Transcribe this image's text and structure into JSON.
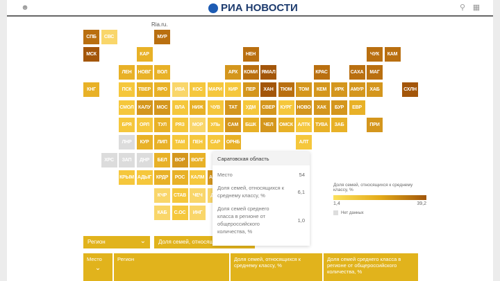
{
  "header": {
    "logo": "РИА НОВОСТИ",
    "icons": [
      "user-icon",
      "search-icon",
      "chat-icon"
    ]
  },
  "source": "Ria.ru.",
  "palette": {
    "0": "#f9d66a",
    "1": "#f5c73c",
    "2": "#e8b127",
    "3": "#d4961d",
    "4": "#b96f10",
    "5": "#a3560a",
    "nodata": "#dcdcdc"
  },
  "tiles": [
    {
      "label": "СПБ",
      "level": 4
    },
    {
      "label": "СВС",
      "level": 0
    },
    {
      "label": "МУР",
      "level": 4
    },
    {
      "label": "МСК",
      "level": 5
    },
    {
      "label": "КАР",
      "level": 2
    },
    {
      "label": "НЕН",
      "level": 4
    },
    {
      "label": "ЧУК",
      "level": 4
    },
    {
      "label": "КАМ",
      "level": 4
    },
    {
      "label": "ЛЕН",
      "level": 2
    },
    {
      "label": "НОВГ",
      "level": 2
    },
    {
      "label": "ВОЛ",
      "level": 2
    },
    {
      "label": "АРХ",
      "level": 3
    },
    {
      "label": "КОМИ",
      "level": 4
    },
    {
      "label": "ЯМАЛ",
      "level": 5
    },
    {
      "label": "КРАС",
      "level": 4
    },
    {
      "label": "САХА",
      "level": 4
    },
    {
      "label": "МАГ",
      "level": 4
    },
    {
      "label": "КНГ",
      "level": 2
    },
    {
      "label": "ПСК",
      "level": 1
    },
    {
      "label": "ТВЕР",
      "level": 2
    },
    {
      "label": "ЯРО",
      "level": 2
    },
    {
      "label": "ИВА",
      "level": 0
    },
    {
      "label": "КОС",
      "level": 1
    },
    {
      "label": "МАРИ",
      "level": 1
    },
    {
      "label": "КИР",
      "level": 1
    },
    {
      "label": "ПЕР",
      "level": 3
    },
    {
      "label": "ХАН",
      "level": 5
    },
    {
      "label": "ТЮМ",
      "level": 4
    },
    {
      "label": "ТОМ",
      "level": 3
    },
    {
      "label": "КЕМ",
      "level": 3
    },
    {
      "label": "ИРК",
      "level": 3
    },
    {
      "label": "АМУР",
      "level": 3
    },
    {
      "label": "ХАБ",
      "level": 3
    },
    {
      "label": "СХЛН",
      "level": 5
    },
    {
      "label": "СМОЛ",
      "level": 1
    },
    {
      "label": "КАЛУ",
      "level": 3
    },
    {
      "label": "МОС",
      "level": 3
    },
    {
      "label": "ВЛА",
      "level": 1
    },
    {
      "label": "НИЖ",
      "level": 2
    },
    {
      "label": "ЧУВ",
      "level": 1
    },
    {
      "label": "ТАТ",
      "level": 3
    },
    {
      "label": "УДМ",
      "level": 1
    },
    {
      "label": "СВЕР",
      "level": 3
    },
    {
      "label": "КУРГ",
      "level": 1
    },
    {
      "label": "НОВО",
      "level": 3
    },
    {
      "label": "ХАК",
      "level": 3
    },
    {
      "label": "БУР",
      "level": 3
    },
    {
      "label": "ЕВР",
      "level": 2
    },
    {
      "label": "БРЯ",
      "level": 1
    },
    {
      "label": "ОРЛ",
      "level": 1
    },
    {
      "label": "ТУЛ",
      "level": 2
    },
    {
      "label": "РЯЗ",
      "level": 1
    },
    {
      "label": "МОР",
      "level": 0
    },
    {
      "label": "УЛЬ",
      "level": 1
    },
    {
      "label": "САМ",
      "level": 3
    },
    {
      "label": "БШК",
      "level": 2
    },
    {
      "label": "ЧЕЛ",
      "level": 3
    },
    {
      "label": "ОМСК",
      "level": 2
    },
    {
      "label": "АЛТК",
      "level": 1
    },
    {
      "label": "ТУВА",
      "level": 2
    },
    {
      "label": "ЗАБ",
      "level": 2
    },
    {
      "label": "ПРИ",
      "level": 3
    },
    {
      "label": "ЛНР",
      "level": "nodata"
    },
    {
      "label": "КУР",
      "level": 2
    },
    {
      "label": "ЛИП",
      "level": 2
    },
    {
      "label": "ТАМ",
      "level": 1
    },
    {
      "label": "ПЕН",
      "level": 1
    },
    {
      "label": "САР",
      "level": 1
    },
    {
      "label": "ОРНБ",
      "level": 2
    },
    {
      "label": "АЛТ",
      "level": 1
    },
    {
      "label": "ХРС",
      "level": "nodata"
    },
    {
      "label": "ЗАП",
      "level": "nodata"
    },
    {
      "label": "ДНР",
      "level": "nodata"
    },
    {
      "label": "БЕЛ",
      "level": 2
    },
    {
      "label": "ВОР",
      "level": 3
    },
    {
      "label": "ВОЛГ",
      "level": 2
    },
    {
      "label": "КРЫМ",
      "level": 1
    },
    {
      "label": "АДЫГ",
      "level": 1
    },
    {
      "label": "КРДР",
      "level": 2
    },
    {
      "label": "РОС",
      "level": 2
    },
    {
      "label": "КАЛМ",
      "level": 1
    },
    {
      "label": "АСТР",
      "level": 3
    },
    {
      "label": "КЧР",
      "level": 0
    },
    {
      "label": "СТАВ",
      "level": 1
    },
    {
      "label": "ЧЕЧ",
      "level": 0
    },
    {
      "label": "ДАГ",
      "level": 0
    },
    {
      "label": "КАБ",
      "level": 0
    },
    {
      "label": "С.ОС",
      "level": 1
    },
    {
      "label": "ИНГ",
      "level": 0
    }
  ],
  "tooltip": {
    "title": "Саратовская область",
    "rows": [
      {
        "label": "Место",
        "value": "54"
      },
      {
        "label": "Доля семей, относящихся к среднему классу, %",
        "value": "6,1"
      },
      {
        "label": "Доля семей среднего класса в регионе от общероссийского количества, %",
        "value": "1,0"
      }
    ]
  },
  "legend": {
    "title": "Доля семей, относящихся к среднему классу, %",
    "min": "1,4",
    "max": "39,2",
    "nodata": "Нет данных"
  },
  "controls": {
    "region_select": "Регион",
    "metric_select": "Доля семей, относящихся к среднему классу, %"
  },
  "table": {
    "columns": [
      "Место",
      "Регион",
      "Доля семей, относящихся к среднему классу, %",
      "Доля семей среднего класса в регионе от общероссийского количества, %"
    ]
  }
}
